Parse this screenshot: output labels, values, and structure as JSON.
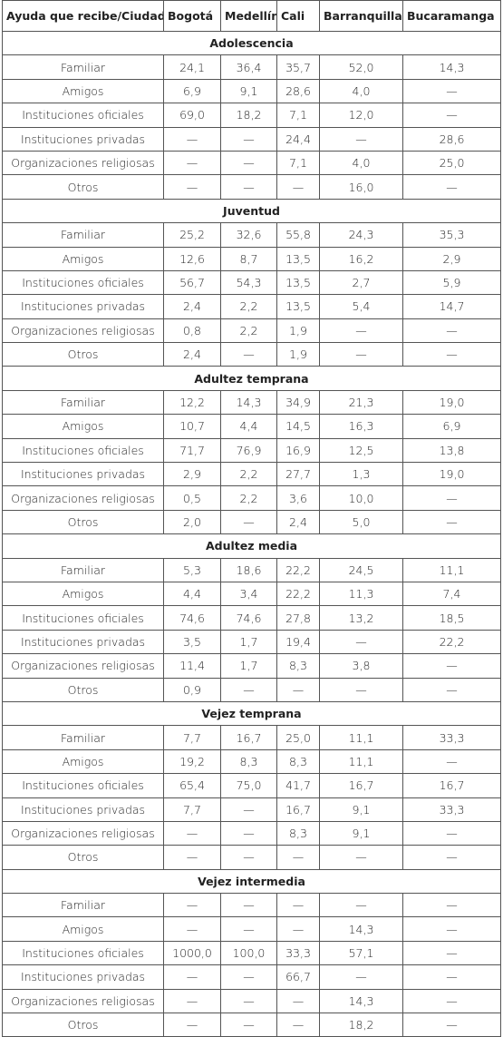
{
  "table": {
    "header": [
      "Ayuda que recibe/Ciudad",
      "Bogotá",
      "Medellín",
      "Cali",
      "Barranquilla",
      "Bucaramanga"
    ],
    "sections": [
      {
        "title": "Adolescencia",
        "rows": [
          [
            "Familiar",
            "24,1",
            "36,4",
            "35,7",
            "52,0",
            "14,3"
          ],
          [
            "Amigos",
            "6,9",
            "9,1",
            "28,6",
            "4,0",
            "—"
          ],
          [
            "Instituciones oficiales",
            "69,0",
            "18,2",
            "7,1",
            "12,0",
            "—"
          ],
          [
            "Instituciones privadas",
            "—",
            "—",
            "24,4",
            "—",
            "28,6"
          ],
          [
            "Organizaciones religiosas",
            "—",
            "—",
            "7,1",
            "4,0",
            "25,0"
          ],
          [
            "Otros",
            "—",
            "—",
            "—",
            "16,0",
            "—"
          ]
        ]
      },
      {
        "title": "Juventud",
        "rows": [
          [
            "Familiar",
            "25,2",
            "32,6",
            "55,8",
            "24,3",
            "35,3"
          ],
          [
            "Amigos",
            "12,6",
            "8,7",
            "13,5",
            "16,2",
            "2,9"
          ],
          [
            "Instituciones oficiales",
            "56,7",
            "54,3",
            "13,5",
            "2,7",
            "5,9"
          ],
          [
            "Instituciones privadas",
            "2,4",
            "2,2",
            "13,5",
            "5,4",
            "14,7"
          ],
          [
            "Organizaciones religiosas",
            "0,8",
            "2,2",
            "1,9",
            "—",
            "—"
          ],
          [
            "Otros",
            "2,4",
            "—",
            "1,9",
            "—",
            "—"
          ]
        ]
      },
      {
        "title": "Adultez temprana",
        "rows": [
          [
            "Familiar",
            "12,2",
            "14,3",
            "34,9",
            "21,3",
            "19,0"
          ],
          [
            "Amigos",
            "10,7",
            "4,4",
            "14,5",
            "16,3",
            "6,9"
          ],
          [
            "Instituciones oficiales",
            "71,7",
            "76,9",
            "16,9",
            "12,5",
            "13,8"
          ],
          [
            "Instituciones privadas",
            "2,9",
            "2,2",
            "27,7",
            "1,3",
            "19,0"
          ],
          [
            "Organizaciones religiosas",
            "0,5",
            "2,2",
            "3,6",
            "10,0",
            "—"
          ],
          [
            "Otros",
            "2,0",
            "—",
            "2,4",
            "5,0",
            "—"
          ]
        ]
      },
      {
        "title": "Adultez media",
        "rows": [
          [
            "Familiar",
            "5,3",
            "18,6",
            "22,2",
            "24,5",
            "11,1"
          ],
          [
            "Amigos",
            "4,4",
            "3,4",
            "22,2",
            "11,3",
            "7,4"
          ],
          [
            "Instituciones oficiales",
            "74,6",
            "74,6",
            "27,8",
            "13,2",
            "18,5"
          ],
          [
            "Instituciones privadas",
            "3,5",
            "1,7",
            "19,4",
            "—",
            "22,2"
          ],
          [
            "Organizaciones religiosas",
            "11,4",
            "1,7",
            "8,3",
            "3,8",
            "—"
          ],
          [
            "Otros",
            "0,9",
            "—",
            "—",
            "—",
            "—"
          ]
        ]
      },
      {
        "title": "Vejez temprana",
        "rows": [
          [
            "Familiar",
            "7,7",
            "16,7",
            "25,0",
            "11,1",
            "33,3"
          ],
          [
            "Amigos",
            "19,2",
            "8,3",
            "8,3",
            "11,1",
            "—"
          ],
          [
            "Instituciones oficiales",
            "65,4",
            "75,0",
            "41,7",
            "16,7",
            "16,7"
          ],
          [
            "Instituciones privadas",
            "7,7",
            "—",
            "16,7",
            "9,1",
            "33,3"
          ],
          [
            "Organizaciones religiosas",
            "—",
            "—",
            "8,3",
            "9,1",
            "—"
          ],
          [
            "Otros",
            "—",
            "—",
            "—",
            "—",
            "—"
          ]
        ]
      },
      {
        "title": "Vejez intermedia",
        "rows": [
          [
            "Familiar",
            "—",
            "—",
            "—",
            "—",
            "—"
          ],
          [
            "Amigos",
            "—",
            "—",
            "—",
            "14,3",
            "—"
          ],
          [
            "Instituciones oficiales",
            "1000,0",
            "100,0",
            "33,3",
            "57,1",
            "—"
          ],
          [
            "Instituciones privadas",
            "—",
            "—",
            "66,7",
            "—",
            "—"
          ],
          [
            "Organizaciones religiosas",
            "—",
            "—",
            "—",
            "14,3",
            "—"
          ],
          [
            "Otros",
            "—",
            "—",
            "—",
            "18,2",
            "—"
          ]
        ]
      }
    ]
  }
}
